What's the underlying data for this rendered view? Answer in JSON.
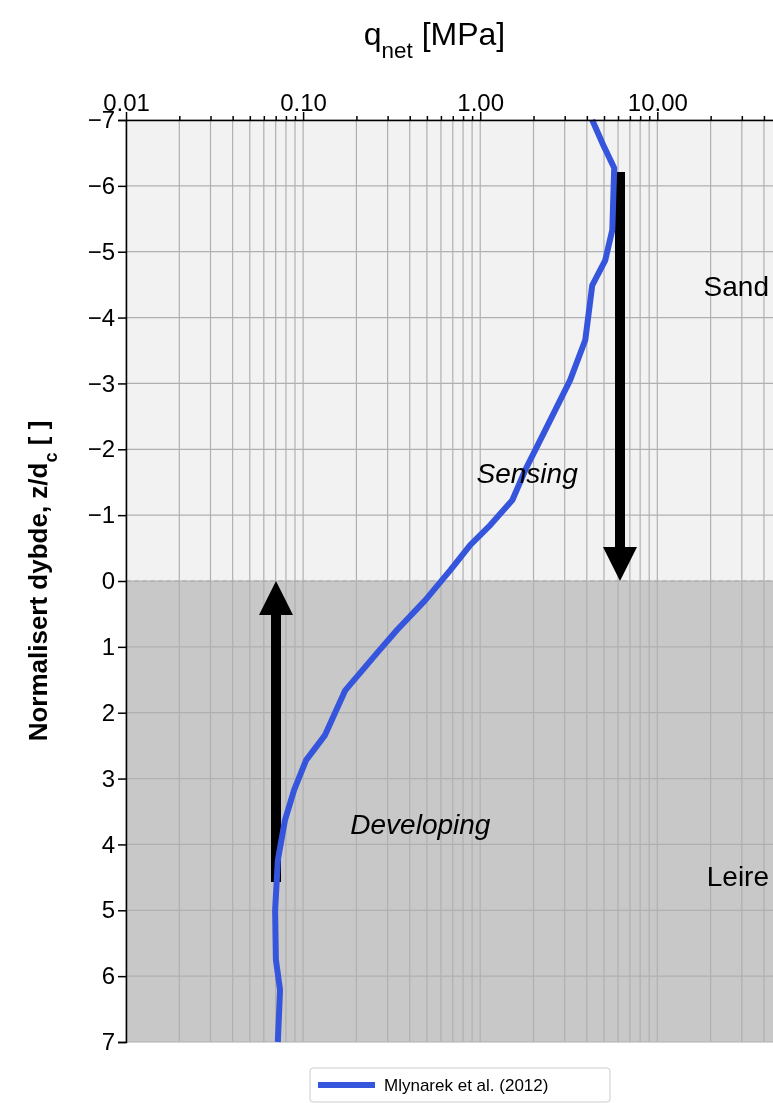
{
  "chart_data": {
    "type": "line",
    "xlabel": "q$_{net}$ [MPa]",
    "ylabel": "Normalisert dybde, z/d$_{c}$ [ ]",
    "log": "x",
    "grid": true,
    "legend": "bottom",
    "line_style": "solid",
    "marker": "none",
    "xlim": [
      0.01,
      45
    ],
    "ylim": [
      7,
      -7
    ],
    "xticks": [
      0.01,
      {
        "value": 0.02,
        "label": null
      },
      {
        "value": 0.03,
        "label": null
      },
      {
        "value": 0.04,
        "label": null
      },
      {
        "value": 0.05,
        "label": null
      },
      {
        "value": 0.06,
        "label": null
      },
      {
        "value": 0.07,
        "label": null
      },
      {
        "value": 0.08,
        "label": null
      },
      {
        "value": 0.09,
        "label": null
      },
      {
        "value": 0.1,
        "label": "0.10"
      },
      {
        "value": 0.2,
        "label": null
      },
      {
        "value": 0.3,
        "label": null
      },
      {
        "value": 0.4,
        "label": null
      },
      {
        "value": 0.5,
        "label": null
      },
      {
        "value": 0.6,
        "label": null
      },
      {
        "value": 0.7,
        "label": null
      },
      {
        "value": 0.8,
        "label": null
      },
      {
        "value": 0.9,
        "label": null
      },
      {
        "value": 1,
        "label": "1.00"
      },
      {
        "value": 2,
        "label": null
      },
      {
        "value": 3,
        "label": null
      },
      {
        "value": 4,
        "label": null
      },
      {
        "value": 5,
        "label": null
      },
      {
        "value": 6,
        "label": null
      },
      {
        "value": 7,
        "label": null
      },
      {
        "value": 8,
        "label": null
      },
      {
        "value": 9,
        "label": null
      },
      {
        "value": 10,
        "label": "10.00"
      },
      {
        "value": 20,
        "label": null
      },
      {
        "value": 30,
        "label": null
      },
      {
        "value": 40,
        "label": null
      }
    ],
    "yticks": [
      {
        "value": -7,
        "label": "−7"
      },
      {
        "value": -6,
        "label": "−6"
      },
      {
        "value": -5,
        "label": "−5"
      },
      {
        "value": -4,
        "label": "−4"
      },
      {
        "value": -3,
        "label": "−3"
      },
      {
        "value": -2,
        "label": "−2"
      },
      {
        "value": -1,
        "label": "−1"
      },
      0,
      1,
      2,
      3,
      4,
      5,
      6,
      7
    ],
    "bands": [
      {
        "axis": "y",
        "from": -7,
        "to": 0,
        "label": "Sand",
        "color": "#f2f2f2"
      },
      {
        "axis": "y",
        "from": 0,
        "to": 7,
        "label": "Leire",
        "color": "#c8c8c8"
      }
    ],
    "ref_lines": [
      {
        "axis": "y",
        "value": 0,
        "color": "#aaaaaa",
        "line_style": "dashed"
      }
    ],
    "annotations": [
      "Sensing",
      "Developing"
    ],
    "series": [
      {
        "name": "Mlynarek et al. (2012)",
        "color": "#3555dd",
        "x": [
          4.29,
          4.95,
          5.71,
          5.57,
          5.08,
          4.29,
          3.92,
          3.22,
          2.33,
          1.8,
          1.52,
          1.14,
          0.88,
          0.68,
          0.49,
          0.34,
          0.27,
          0.173,
          0.133,
          0.104,
          0.089,
          0.079,
          0.072,
          0.0695,
          0.0702,
          0.0741,
          0.072
        ],
        "values": [
          -7,
          -6.62,
          -6.27,
          -5.33,
          -4.87,
          -4.49,
          -3.66,
          -3.05,
          -2.29,
          -1.69,
          -1.23,
          -0.85,
          -0.55,
          -0.17,
          0.29,
          0.74,
          1.05,
          1.66,
          2.34,
          2.72,
          3.17,
          3.63,
          4.24,
          5.0,
          5.75,
          6.21,
          7
        ]
      }
    ]
  }
}
